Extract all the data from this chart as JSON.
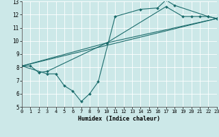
{
  "xlabel": "Humidex (Indice chaleur)",
  "xlim": [
    0,
    23
  ],
  "ylim": [
    5,
    13
  ],
  "yticks": [
    5,
    6,
    7,
    8,
    9,
    10,
    11,
    12,
    13
  ],
  "xticks": [
    0,
    1,
    2,
    3,
    4,
    5,
    6,
    7,
    8,
    9,
    10,
    11,
    12,
    13,
    14,
    15,
    16,
    17,
    18,
    19,
    20,
    21,
    22,
    23
  ],
  "bg_color": "#cce8e8",
  "line_color": "#1a6b6b",
  "lines": [
    {
      "x": [
        0,
        1,
        2,
        3,
        10,
        17,
        19,
        20,
        21,
        22,
        23
      ],
      "y": [
        8.1,
        8.1,
        7.6,
        7.7,
        9.85,
        12.6,
        11.85,
        11.85,
        11.85,
        11.85,
        11.7
      ],
      "markers": true
    },
    {
      "x": [
        0,
        3,
        4,
        5,
        6,
        7,
        8,
        9,
        11,
        14,
        16,
        17,
        18,
        22,
        23
      ],
      "y": [
        8.1,
        7.5,
        7.5,
        6.6,
        6.2,
        5.4,
        6.0,
        6.9,
        11.85,
        12.4,
        12.5,
        13.1,
        12.7,
        11.85,
        11.7
      ],
      "markers": true
    },
    {
      "x": [
        0,
        10,
        23
      ],
      "y": [
        8.1,
        9.85,
        11.7
      ],
      "markers": false
    },
    {
      "x": [
        0,
        23
      ],
      "y": [
        8.1,
        11.7
      ],
      "markers": false
    }
  ]
}
